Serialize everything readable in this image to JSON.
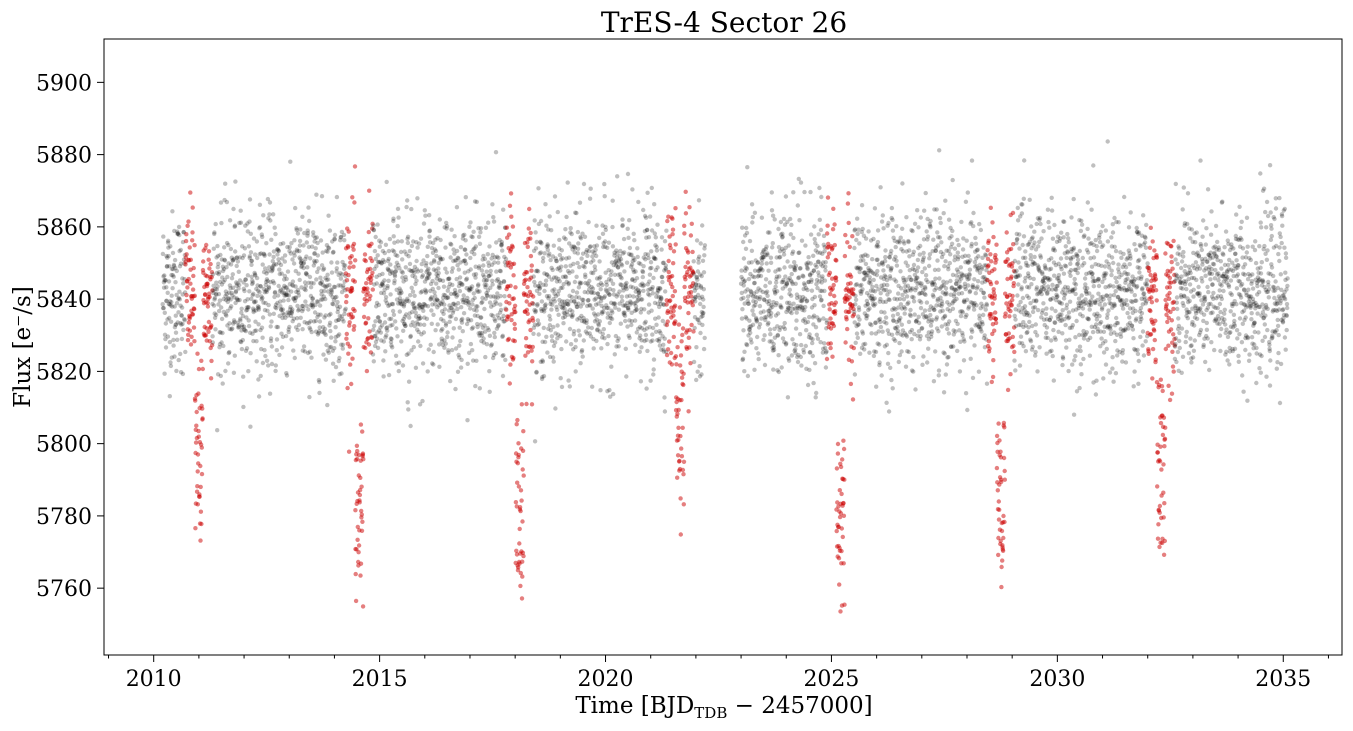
{
  "chart_data": {
    "type": "scatter",
    "title": "TrES-4 Sector 26",
    "xlabel": "Time [BJD",
    "xlabel_sub": "TDB",
    "xlabel_suffix": " − 2457000]",
    "ylabel": "Flux [e⁻/s]",
    "xlim": [
      2008.9,
      2036.3
    ],
    "ylim": [
      5741.5,
      5912
    ],
    "xticks": [
      2010,
      2015,
      2020,
      2025,
      2030,
      2035
    ],
    "xtick_labels": [
      "2010",
      "2015",
      "2020",
      "2025",
      "2030",
      "2035"
    ],
    "yticks": [
      5760,
      5780,
      5800,
      5820,
      5840,
      5860,
      5880,
      5900
    ],
    "ytick_labels": [
      "5760",
      "5780",
      "5800",
      "5820",
      "5840",
      "5860",
      "5880",
      "5900"
    ],
    "grid": false,
    "legend": "none",
    "colors": {
      "out_of_transit": "#000000",
      "in_transit": "#cc0000"
    },
    "series": [
      {
        "color": "out_of_transit",
        "segments": [
          [
            2010.2,
            2022.2
          ],
          [
            2023.0,
            2035.1
          ]
        ],
        "baseline_flux": 5842,
        "scatter_sigma": 11
      },
      {
        "color": "in_transit",
        "transits": [
          {
            "mid": 2011.0,
            "depth_flux": 5768
          },
          {
            "mid": 2014.55,
            "depth_flux": 5752
          },
          {
            "mid": 2018.1,
            "depth_flux": 5752
          },
          {
            "mid": 2021.65,
            "depth_flux": 5775
          },
          {
            "mid": 2025.2,
            "depth_flux": 5749
          },
          {
            "mid": 2028.75,
            "depth_flux": 5753
          },
          {
            "mid": 2032.3,
            "depth_flux": 5760
          }
        ],
        "transit_half_width": 0.3
      }
    ]
  }
}
